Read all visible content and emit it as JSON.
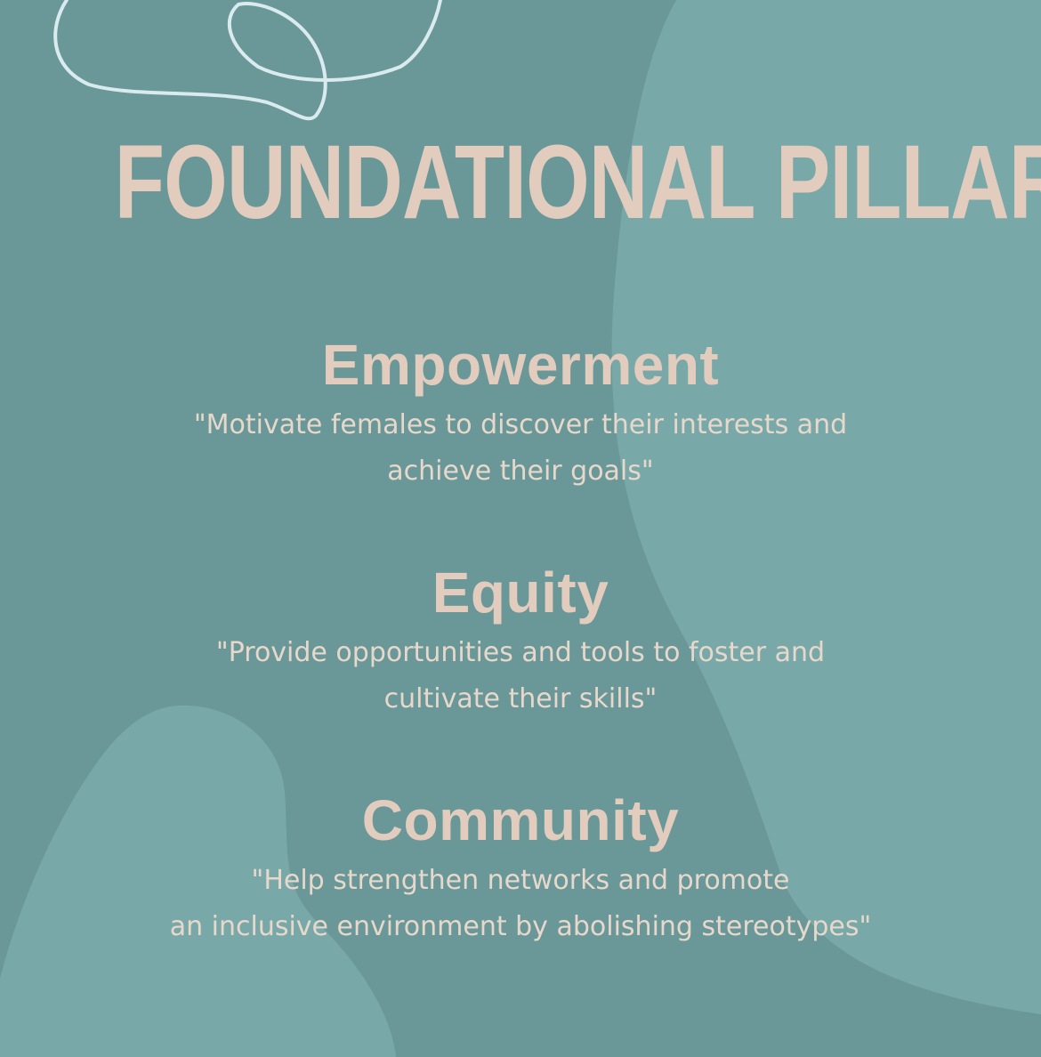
{
  "title": "FOUNDATIONAL PILLARS",
  "colors": {
    "background": "#6a9797",
    "blob": "#79a8a9",
    "doodle": "#d9ebee",
    "heading_text": "#e1ccbd",
    "body_text": "#e7d8cc"
  },
  "pillars": [
    {
      "name": "Empowerment",
      "quote_lines": [
        "\"Motivate females to discover their interests and",
        "achieve their goals\""
      ]
    },
    {
      "name": "Equity",
      "quote_lines": [
        "\"Provide opportunities and tools to foster and",
        "cultivate their skills\""
      ]
    },
    {
      "name": "Community",
      "quote_lines": [
        "\"Help strengthen networks and promote",
        "an inclusive environment by abolishing stereotypes\""
      ]
    }
  ]
}
